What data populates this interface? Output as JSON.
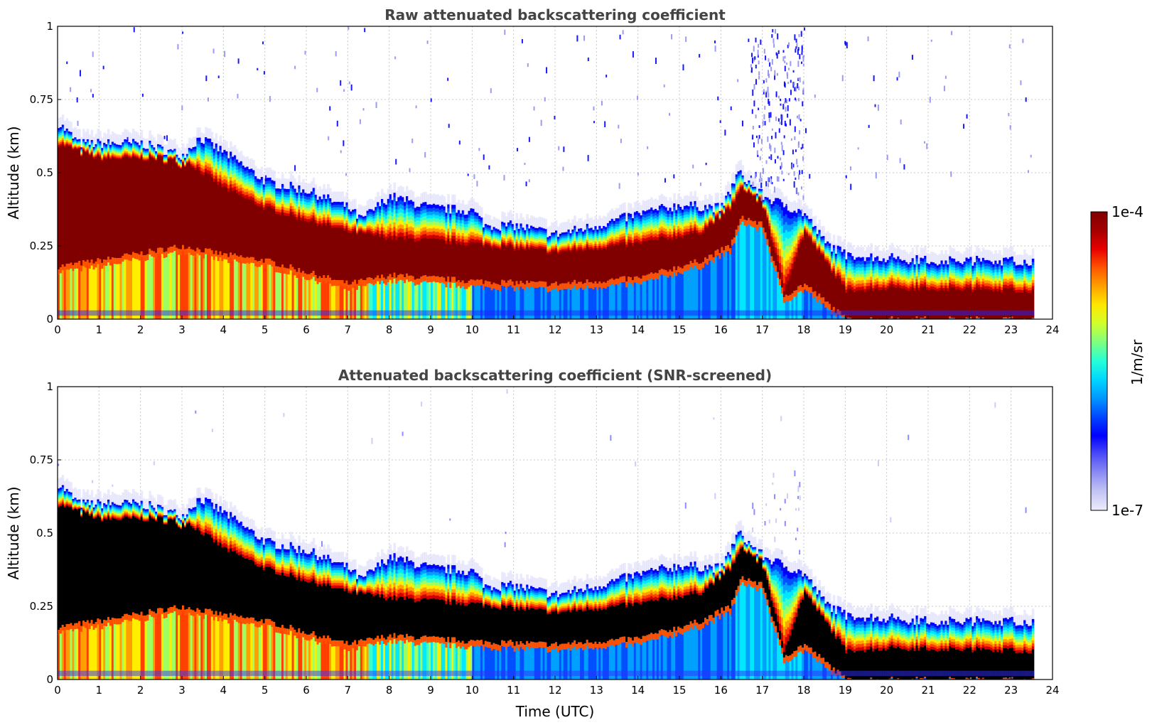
{
  "chart_data": [
    {
      "type": "heatmap",
      "title": "Raw attenuated backscattering coefficient",
      "xlabel": "",
      "ylabel": "Altitude (km)",
      "xlim": [
        0,
        24
      ],
      "ylim": [
        0,
        1
      ],
      "xticks": [
        "0",
        "1",
        "2",
        "3",
        "4",
        "5",
        "6",
        "7",
        "8",
        "9",
        "10",
        "11",
        "12",
        "13",
        "14",
        "15",
        "16",
        "17",
        "18",
        "19",
        "20",
        "21",
        "22",
        "23",
        "24"
      ],
      "yticks": [
        "0",
        "0.25",
        "0.5",
        "0.75",
        "1"
      ],
      "data_end_hour": 23.55,
      "layer_top_km": [
        [
          0,
          0.67
        ],
        [
          0.5,
          0.6
        ],
        [
          1,
          0.6
        ],
        [
          2,
          0.6
        ],
        [
          3,
          0.56
        ],
        [
          3.4,
          0.62
        ],
        [
          4,
          0.57
        ],
        [
          5,
          0.47
        ],
        [
          6,
          0.44
        ],
        [
          7,
          0.38
        ],
        [
          7.3,
          0.34
        ],
        [
          8,
          0.42
        ],
        [
          9,
          0.38
        ],
        [
          10,
          0.37
        ],
        [
          10.3,
          0.32
        ],
        [
          11,
          0.32
        ],
        [
          12,
          0.29
        ],
        [
          13,
          0.32
        ],
        [
          14,
          0.36
        ],
        [
          15,
          0.39
        ],
        [
          16,
          0.38
        ],
        [
          16.4,
          0.5
        ],
        [
          17,
          0.42
        ],
        [
          18,
          0.36
        ],
        [
          18.5,
          0.26
        ],
        [
          19,
          0.22
        ],
        [
          20,
          0.21
        ],
        [
          21,
          0.2
        ],
        [
          23.55,
          0.2
        ]
      ],
      "saturated_band_km": [
        [
          0,
          0.18,
          0.6
        ],
        [
          1,
          0.2,
          0.55
        ],
        [
          3,
          0.25,
          0.55
        ],
        [
          4,
          0.22,
          0.45
        ],
        [
          5,
          0.2,
          0.38
        ],
        [
          7,
          0.12,
          0.3
        ],
        [
          8,
          0.15,
          0.28
        ],
        [
          10,
          0.13,
          0.26
        ],
        [
          12,
          0.12,
          0.23
        ],
        [
          14,
          0.14,
          0.26
        ],
        [
          15.5,
          0.2,
          0.3
        ],
        [
          16.2,
          0.25,
          0.38
        ],
        [
          16.5,
          0.35,
          0.45
        ],
        [
          17,
          0.32,
          0.4
        ],
        [
          17.5,
          0.08,
          0.1
        ],
        [
          18,
          0.12,
          0.3
        ],
        [
          19,
          0.0,
          0.1
        ],
        [
          20,
          0.0,
          0.11
        ],
        [
          23.55,
          0.0,
          0.1
        ]
      ]
    },
    {
      "type": "heatmap",
      "title": "Attenuated backscattering coefficient (SNR-screened)",
      "xlabel": "Time (UTC)",
      "ylabel": "Altitude (km)",
      "xlim": [
        0,
        24
      ],
      "ylim": [
        0,
        1
      ],
      "xticks": [
        "0",
        "1",
        "2",
        "3",
        "4",
        "5",
        "6",
        "7",
        "8",
        "9",
        "10",
        "11",
        "12",
        "13",
        "14",
        "15",
        "16",
        "17",
        "18",
        "19",
        "20",
        "21",
        "22",
        "23",
        "24"
      ],
      "yticks": [
        "0",
        "0.25",
        "0.5",
        "0.75",
        "1"
      ],
      "data_end_hour": 23.55,
      "screened_fill": "#000000"
    }
  ],
  "colorbar": {
    "label": "1/m/sr",
    "max_label": "1e-4",
    "min_label": "1e-7",
    "colors": [
      "#ececfb",
      "#c4c4f6",
      "#8d8df3",
      "#4c4cf7",
      "#0000ff",
      "#0046ff",
      "#0096ff",
      "#00d6ff",
      "#26ffd8",
      "#7dff80",
      "#d0ff2e",
      "#ffe800",
      "#ffa200",
      "#ff5500",
      "#e80000",
      "#a50000",
      "#800000"
    ]
  }
}
